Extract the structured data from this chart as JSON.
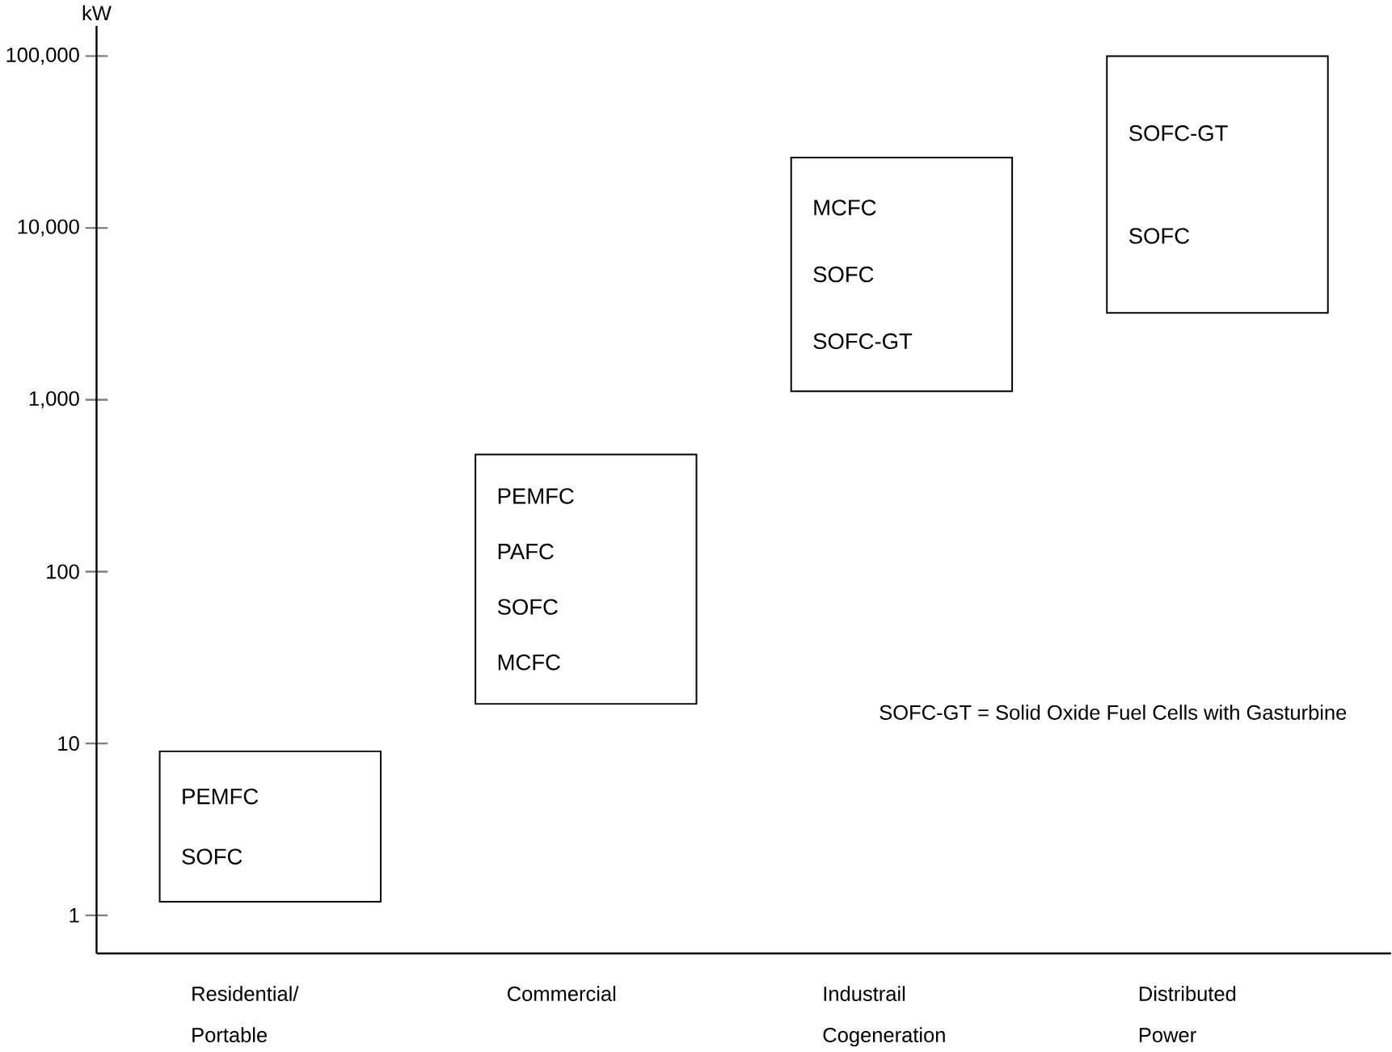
{
  "chart_data": {
    "type": "bar",
    "ylabel": "kW",
    "log": "y",
    "ylim": [
      0.6,
      150000
    ],
    "categories": [
      "Residential/ Portable",
      "Commercial",
      "Industrail Cogeneration",
      "Distributed Power"
    ],
    "base": [
      1.2,
      17,
      1120,
      3200
    ],
    "values": [
      7.8,
      463,
      24580,
      96800
    ],
    "color": "#ffffff",
    "yticks": [
      {
        "value": 1,
        "label": "1"
      },
      {
        "value": 10,
        "label": "10"
      },
      {
        "value": 100,
        "label": "100"
      },
      {
        "value": 1000,
        "label": "1,000"
      },
      {
        "value": 10000,
        "label": "10,000"
      },
      {
        "value": 100000,
        "label": "100,000"
      }
    ],
    "annotations": [
      "PEMFC",
      "SOFC",
      "PEMFC",
      "PAFC",
      "SOFC",
      "MCFC",
      "MCFC",
      "SOFC",
      "SOFC-GT",
      "SOFC-GT",
      "SOFC",
      "SOFC-GT = Solid Oxide Fuel Cells with Gasturbine"
    ]
  }
}
